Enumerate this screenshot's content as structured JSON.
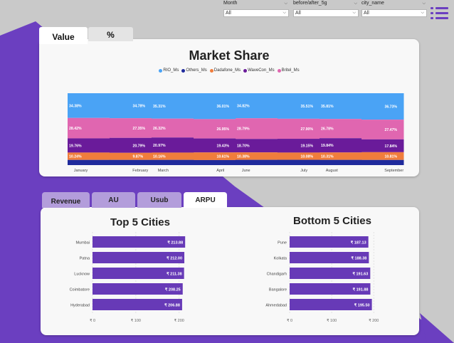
{
  "filters": [
    {
      "label": "Month",
      "value": "All"
    },
    {
      "label": "before/after_5g",
      "value": "All"
    },
    {
      "label": "city_name",
      "value": "All"
    }
  ],
  "icons": {
    "menu": "hamburger-menu-icon",
    "chevron": "chevron-down-icon"
  },
  "tabs_top": [
    {
      "label": "Value",
      "active": true
    },
    {
      "label": "%",
      "active": false
    }
  ],
  "tabs_bottom": [
    {
      "label": "Revenue",
      "active": false
    },
    {
      "label": "AU",
      "active": false
    },
    {
      "label": "Usub",
      "active": false
    },
    {
      "label": "ARPU",
      "active": true
    }
  ],
  "colors": {
    "accent": "#6b3fc0",
    "RIO_Ms": "#4aa3f5",
    "Others_Ms": "#1f2a9c",
    "Dadafone_Ms": "#f07d3c",
    "WaveCon_Ms": "#6a1b9a",
    "Britel_Ms": "#e066b0",
    "bar": "#673ab7"
  },
  "chart_data": [
    {
      "type": "bar",
      "stacked": true,
      "title": "Market Share",
      "legend_position": "top",
      "categories": [
        "January",
        "February",
        "March",
        "April",
        "June",
        "July",
        "August",
        "September"
      ],
      "series": [
        {
          "name": "RIO_Ms",
          "labels": [
            "34.38%",
            "34.78%",
            "35.31%",
            "36.01%",
            "34.82%",
            "35.51%",
            "35.81%",
            "36.73%"
          ],
          "values": [
            34.38,
            34.78,
            35.31,
            36.01,
            34.82,
            35.51,
            35.81,
            36.73
          ]
        },
        {
          "name": "Britel_Ms",
          "labels": [
            "28.42%",
            "27.35%",
            "26.32%",
            "26.95%",
            "28.79%",
            "27.90%",
            "26.78%",
            "27.47%"
          ],
          "values": [
            28.42,
            27.35,
            26.32,
            26.95,
            28.79,
            27.9,
            26.78,
            27.47
          ]
        },
        {
          "name": "WaveCon_Ms",
          "labels": [
            "19.76%",
            "20.79%",
            "20.97%",
            "19.43%",
            "18.70%",
            "19.15%",
            "19.84%",
            "17.84%"
          ],
          "values": [
            19.76,
            20.79,
            20.97,
            19.43,
            18.7,
            19.15,
            19.84,
            17.84
          ]
        },
        {
          "name": "Dadafone_Ms",
          "labels": [
            "10.24%",
            "9.87%",
            "10.16%",
            "10.61%",
            "10.38%",
            "10.08%",
            "10.31%",
            "10.81%"
          ],
          "values": [
            10.24,
            9.87,
            10.16,
            10.61,
            10.38,
            10.08,
            10.31,
            10.81
          ]
        },
        {
          "name": "Others_Ms",
          "labels": [
            "",
            "",
            "",
            "",
            "",
            "",
            "",
            ""
          ],
          "values": [
            7.2,
            7.21,
            7.24,
            7.0,
            7.31,
            7.36,
            7.26,
            7.15
          ]
        }
      ],
      "legend_order": [
        "RIO_Ms",
        "Others_Ms",
        "Dadafone_Ms",
        "WaveCon_Ms",
        "Britel_Ms"
      ]
    },
    {
      "type": "bar",
      "orientation": "horizontal",
      "title": "Top 5 Cities",
      "categories": [
        "Mumbai",
        "Patna",
        "Lucknow",
        "Coimbatore",
        "Hyderabad"
      ],
      "values": [
        213.88,
        212.0,
        211.38,
        208.25,
        206.88
      ],
      "data_labels": [
        "₹ 213.88",
        "₹ 212.00",
        "₹ 211.38",
        "₹ 208.25",
        "₹ 206.88"
      ],
      "xticks": [
        "₹ 0",
        "₹ 100",
        "₹ 200"
      ],
      "xlim": [
        0,
        230
      ]
    },
    {
      "type": "bar",
      "orientation": "horizontal",
      "title": "Bottom 5 Cities",
      "categories": [
        "Pune",
        "Kolkata",
        "Chandigarh",
        "Bangalore",
        "Ahmedabad"
      ],
      "values": [
        187.13,
        188.38,
        191.63,
        191.88,
        195.5
      ],
      "data_labels": [
        "₹ 187.13",
        "₹ 188.38",
        "₹ 191.63",
        "₹ 191.88",
        "₹ 195.50"
      ],
      "xticks": [
        "₹ 0",
        "₹ 100",
        "₹ 200"
      ],
      "xlim": [
        0,
        230
      ]
    }
  ]
}
